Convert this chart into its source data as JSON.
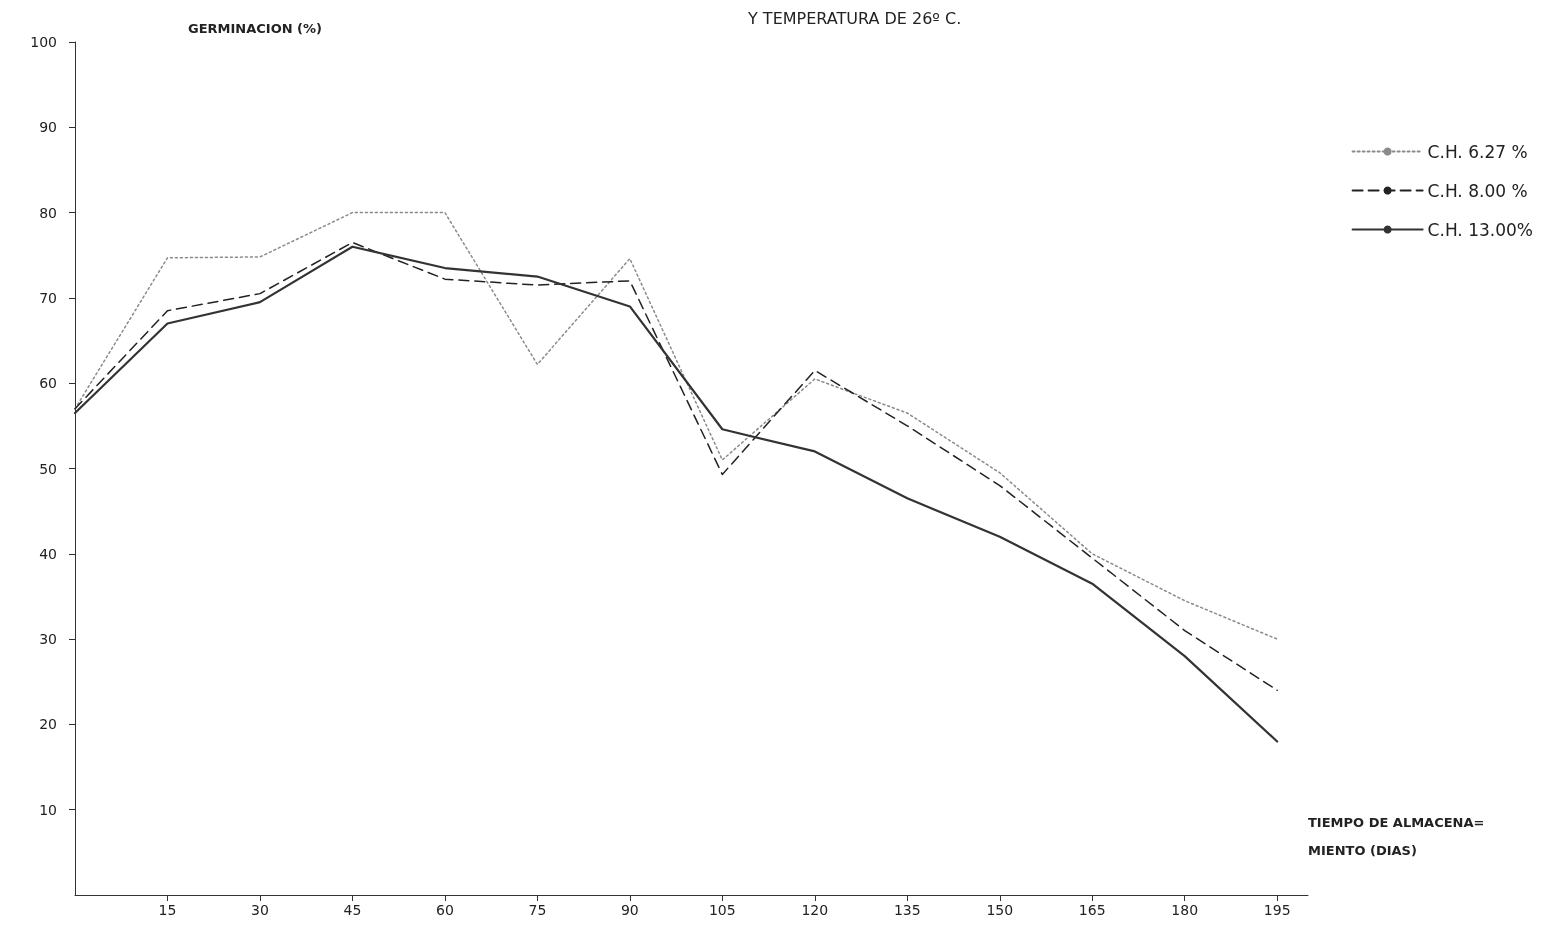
{
  "chart_data": {
    "type": "line",
    "title": "Y TEMPERATURA DE 26º C.",
    "ylabel": "GERMINACION (%)",
    "xlabel": "TIEMPO DE ALMACENA= MIENTO (DIAS)",
    "x": [
      0,
      15,
      30,
      45,
      60,
      75,
      90,
      105,
      120,
      135,
      150,
      165,
      180,
      195
    ],
    "series": [
      {
        "name": "C.H. 6.27 %",
        "color": "#8a8a8a",
        "line_style": "dotted",
        "values": [
          57,
          74.7,
          74.8,
          80,
          80,
          62.2,
          74.6,
          51,
          60.5,
          56.5,
          49.5,
          40,
          34.5,
          30
        ]
      },
      {
        "name": "C.H. 8.00 %",
        "color": "#222222",
        "line_style": "dashed",
        "values": [
          57,
          68.5,
          70.5,
          76.5,
          72.2,
          71.5,
          72,
          49.3,
          61.5,
          55,
          48,
          39.5,
          31,
          24
        ]
      },
      {
        "name": "C.H. 13.00%",
        "color": "#333333",
        "line_style": "solid",
        "values": [
          56.5,
          67,
          69.5,
          76,
          73.5,
          72.5,
          69,
          54.6,
          52,
          46.5,
          42,
          36.5,
          28,
          18
        ]
      }
    ],
    "xlim": [
      0,
      200
    ],
    "xticks": [
      15,
      30,
      45,
      60,
      75,
      90,
      105,
      120,
      135,
      150,
      165,
      180,
      195
    ],
    "ylim": [
      0,
      100
    ],
    "yticks": [
      10,
      20,
      30,
      40,
      50,
      60,
      70,
      80,
      90,
      100
    ],
    "grid": false,
    "legend": "top right",
    "marker": "none"
  }
}
